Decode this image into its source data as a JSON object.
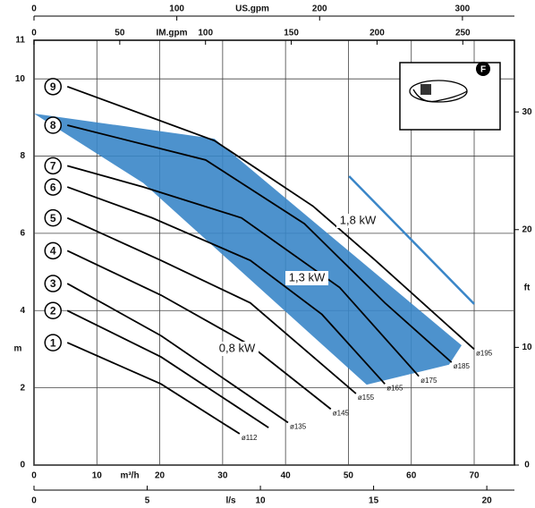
{
  "chart_data": {
    "type": "line",
    "ylabel": "m",
    "ylim": [
      0,
      11
    ],
    "yticks": [
      0,
      2,
      4,
      6,
      8,
      10,
      11
    ],
    "y2label": "ft",
    "y2lim": [
      0,
      36.09
    ],
    "y2ticks": [
      0,
      10,
      20,
      30
    ],
    "xlabel": "m³/h",
    "xlim": [
      0,
      76.4
    ],
    "xticks": [
      0,
      10,
      20,
      30,
      40,
      50,
      60,
      70
    ],
    "x_ls": {
      "label": "l/s",
      "lim": [
        0,
        21.22
      ],
      "ticks": [
        0,
        5,
        10,
        15,
        20
      ]
    },
    "x_usgpm": {
      "label": "US.gpm",
      "lim": [
        0,
        336.4
      ],
      "ticks": [
        0,
        100,
        200,
        300
      ]
    },
    "x_imgpm": {
      "label": "IM.gpm",
      "lim": [
        0,
        280.1
      ],
      "ticks": [
        0,
        50,
        100,
        150,
        200,
        250
      ]
    },
    "grid": true,
    "series": [
      {
        "name": "1",
        "label": "ø112",
        "color": "#000000",
        "x": [
          5.3,
          20.2,
          32.7
        ],
        "values": [
          3.17,
          2.1,
          0.81
        ]
      },
      {
        "name": "2",
        "label": null,
        "color": "#000000",
        "x": [
          5.3,
          20.2,
          37.3
        ],
        "values": [
          4.0,
          2.8,
          0.97
        ]
      },
      {
        "name": "3",
        "label": "ø135",
        "color": "#000000",
        "x": [
          5.3,
          20.2,
          40.4
        ],
        "values": [
          4.7,
          3.35,
          1.1
        ]
      },
      {
        "name": "4",
        "label": "ø145",
        "color": "#000000",
        "x": [
          5.3,
          20.2,
          34.4,
          47.2
        ],
        "values": [
          5.55,
          4.4,
          3.1,
          1.45
        ]
      },
      {
        "name": "5",
        "label": "ø155",
        "color": "#000000",
        "x": [
          5.3,
          20.2,
          34.4,
          51.2
        ],
        "values": [
          6.4,
          5.3,
          4.2,
          1.85
        ]
      },
      {
        "name": "6",
        "label": "ø165",
        "color": "#000000",
        "x": [
          5.3,
          18.8,
          34.4,
          45.8,
          55.8
        ],
        "values": [
          7.2,
          6.4,
          5.3,
          3.9,
          2.1
        ]
      },
      {
        "name": "7",
        "label": "ø175",
        "color": "#000000",
        "x": [
          5.3,
          17.4,
          33,
          48.6,
          61.2
        ],
        "values": [
          7.75,
          7.2,
          6.4,
          4.6,
          2.3
        ]
      },
      {
        "name": "8",
        "label": "ø185",
        "color": "#000000",
        "x": [
          5.3,
          27.3,
          43,
          55.8,
          66.4
        ],
        "values": [
          8.8,
          7.9,
          6.25,
          4.2,
          2.66
        ]
      },
      {
        "name": "9",
        "label": "ø195",
        "color": "#000000",
        "x": [
          5.3,
          28.7,
          44.4,
          54.3,
          70
        ],
        "values": [
          9.8,
          8.4,
          6.7,
          5.3,
          3.0
        ]
      }
    ],
    "region": {
      "color": "#3a86c8",
      "x": [
        0,
        28.7,
        68,
        66,
        52.9,
        17.4,
        0
      ],
      "values": [
        9.1,
        8.45,
        3.1,
        2.6,
        2.08,
        7.3,
        9.1
      ]
    },
    "limit_line": {
      "color": "#3a86c8",
      "x": [
        50.1,
        70
      ],
      "values": [
        7.48,
        4.17
      ]
    },
    "annotations": [
      "1,8 kW",
      "1,3 kW",
      "0,8 kW"
    ],
    "icon_badge": "F"
  }
}
